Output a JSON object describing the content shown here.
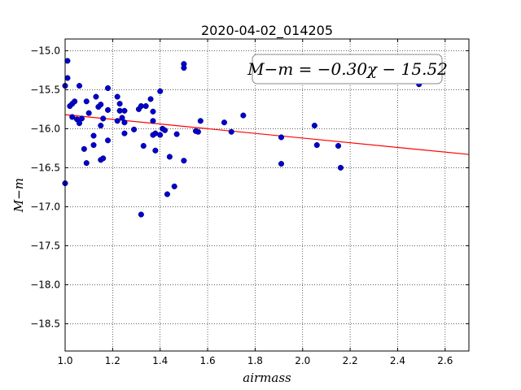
{
  "chart_data": {
    "type": "scatter",
    "title": "2020-04-02_014205",
    "xlabel": "airmass",
    "ylabel": "M−m",
    "xlim": [
      1.0,
      2.7
    ],
    "ylim": [
      -14.85,
      -18.85
    ],
    "y_inverted": true,
    "x_ticks": [
      1.0,
      1.2,
      1.4,
      1.6,
      1.8,
      2.0,
      2.2,
      2.4,
      2.6
    ],
    "x_tick_labels": [
      "1.0",
      "1.2",
      "1.4",
      "1.6",
      "1.8",
      "2.0",
      "2.2",
      "2.4",
      "2.6"
    ],
    "y_ticks": [
      -15.0,
      -15.5,
      -16.0,
      -16.5,
      -17.0,
      -17.5,
      -18.0,
      -18.5
    ],
    "y_tick_labels": [
      "−15.0",
      "−15.5",
      "−16.0",
      "−16.5",
      "−17.0",
      "−17.5",
      "−18.0",
      "−18.5"
    ],
    "grid": true,
    "annotation": "M−m = −0.30χ − 15.52",
    "fit": {
      "slope": -0.3,
      "intercept": -15.52,
      "color": "#ff0000"
    },
    "point_color": "#0000cc",
    "points": [
      [
        1.0,
        -15.45
      ],
      [
        1.01,
        -15.13
      ],
      [
        1.01,
        -15.35
      ],
      [
        1.0,
        -16.7
      ],
      [
        1.02,
        -15.71
      ],
      [
        1.03,
        -15.68
      ],
      [
        1.04,
        -15.65
      ],
      [
        1.03,
        -15.85
      ],
      [
        1.05,
        -15.88
      ],
      [
        1.06,
        -15.93
      ],
      [
        1.07,
        -15.87
      ],
      [
        1.06,
        -15.45
      ],
      [
        1.08,
        -16.26
      ],
      [
        1.09,
        -16.44
      ],
      [
        1.09,
        -15.65
      ],
      [
        1.1,
        -15.8
      ],
      [
        1.12,
        -16.09
      ],
      [
        1.12,
        -16.21
      ],
      [
        1.13,
        -15.59
      ],
      [
        1.14,
        -15.72
      ],
      [
        1.15,
        -15.69
      ],
      [
        1.15,
        -16.4
      ],
      [
        1.16,
        -16.38
      ],
      [
        1.15,
        -15.96
      ],
      [
        1.16,
        -15.87
      ],
      [
        1.18,
        -15.48
      ],
      [
        1.18,
        -15.76
      ],
      [
        1.18,
        -16.15
      ],
      [
        1.22,
        -15.59
      ],
      [
        1.22,
        -15.9
      ],
      [
        1.23,
        -15.68
      ],
      [
        1.23,
        -15.77
      ],
      [
        1.24,
        -15.86
      ],
      [
        1.25,
        -15.77
      ],
      [
        1.25,
        -15.92
      ],
      [
        1.25,
        -16.06
      ],
      [
        1.29,
        -16.01
      ],
      [
        1.31,
        -15.75
      ],
      [
        1.32,
        -15.71
      ],
      [
        1.32,
        -17.1
      ],
      [
        1.33,
        -16.22
      ],
      [
        1.34,
        -15.71
      ],
      [
        1.36,
        -15.62
      ],
      [
        1.37,
        -15.78
      ],
      [
        1.37,
        -15.9
      ],
      [
        1.37,
        -16.08
      ],
      [
        1.38,
        -16.06
      ],
      [
        1.38,
        -16.28
      ],
      [
        1.4,
        -15.52
      ],
      [
        1.4,
        -16.08
      ],
      [
        1.41,
        -16.0
      ],
      [
        1.42,
        -16.02
      ],
      [
        1.43,
        -16.84
      ],
      [
        1.44,
        -16.36
      ],
      [
        1.46,
        -16.74
      ],
      [
        1.47,
        -16.07
      ],
      [
        1.5,
        -15.17
      ],
      [
        1.5,
        -15.22
      ],
      [
        1.5,
        -16.41
      ],
      [
        1.55,
        -16.03
      ],
      [
        1.56,
        -16.04
      ],
      [
        1.57,
        -15.9
      ],
      [
        1.67,
        -15.92
      ],
      [
        1.7,
        -16.04
      ],
      [
        1.75,
        -15.83
      ],
      [
        1.91,
        -16.45
      ],
      [
        1.91,
        -16.11
      ],
      [
        2.05,
        -15.96
      ],
      [
        2.06,
        -16.21
      ],
      [
        2.15,
        -16.22
      ],
      [
        2.16,
        -16.5
      ],
      [
        2.49,
        -15.43
      ]
    ]
  }
}
